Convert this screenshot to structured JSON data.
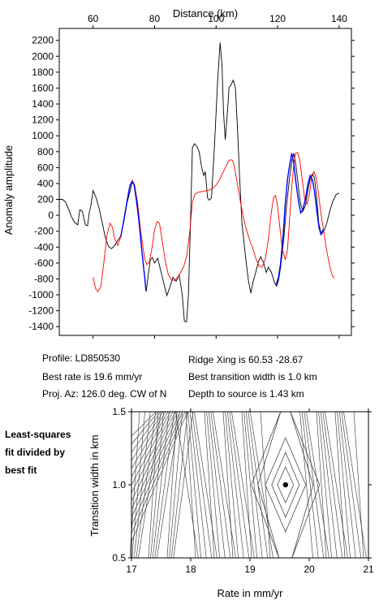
{
  "info": {
    "profile": "Profile: LD850530",
    "best_rate": "Best rate is 19.6 mm/yr",
    "proj_az": "Proj. Az: 126.0 deg. CW of N",
    "ridge_xing": "Ridge Xing is 60.53 -28.67",
    "best_width": "Best transition width is 1.0 km",
    "depth": "Depth to source is   1.43 km"
  },
  "side_note": [
    "Least-squares",
    "fit divided by",
    "best fit"
  ],
  "colors": {
    "observed": "#000000",
    "synthetic": "#ff0000",
    "window_fit": "#0000ff",
    "contour": "#333333",
    "best_fit_marker": "#000000"
  },
  "chart_data": [
    {
      "type": "line",
      "title": "",
      "xlabel": "Distance (km)",
      "ylabel": "Anomaly amplitude",
      "xlim": [
        49,
        144
      ],
      "ylim": [
        -1510,
        2350
      ],
      "xticks": [
        60,
        80,
        100,
        120,
        140
      ],
      "yticks": [
        -1400,
        -1200,
        -1000,
        -800,
        -600,
        -400,
        -200,
        0,
        200,
        400,
        600,
        800,
        1000,
        1200,
        1400,
        1600,
        1800,
        2000,
        2200
      ],
      "x_axis_position": "top",
      "grid": false,
      "series": [
        {
          "key": "observed",
          "points": [
            [
              49,
              200
            ],
            [
              50,
              200
            ],
            [
              51,
              170
            ],
            [
              52,
              80
            ],
            [
              53,
              -20
            ],
            [
              54,
              -90
            ],
            [
              55,
              -120
            ],
            [
              55.7,
              70
            ],
            [
              56.5,
              50
            ],
            [
              57.5,
              -120
            ],
            [
              58.2,
              -130
            ],
            [
              58.8,
              40
            ],
            [
              59.3,
              120
            ],
            [
              60,
              310
            ],
            [
              61,
              220
            ],
            [
              62,
              80
            ],
            [
              63,
              -100
            ],
            [
              64,
              -280
            ],
            [
              65,
              -390
            ],
            [
              66,
              -420
            ],
            [
              67,
              -380
            ],
            [
              68,
              -320
            ],
            [
              69,
              -260
            ],
            [
              70,
              -80
            ],
            [
              71,
              150
            ],
            [
              72,
              300
            ],
            [
              72.7,
              420
            ],
            [
              73.3,
              380
            ],
            [
              74,
              200
            ],
            [
              75,
              -100
            ],
            [
              76,
              -500
            ],
            [
              76.8,
              -780
            ],
            [
              77.3,
              -960
            ],
            [
              77.9,
              -760
            ],
            [
              78.6,
              -560
            ],
            [
              79.3,
              -530
            ],
            [
              80,
              -600
            ],
            [
              81,
              -540
            ],
            [
              82,
              -700
            ],
            [
              83,
              -850
            ],
            [
              84,
              -1010
            ],
            [
              85,
              -900
            ],
            [
              86,
              -780
            ],
            [
              87,
              -830
            ],
            [
              88,
              -750
            ],
            [
              89,
              -1000
            ],
            [
              89.7,
              -1330
            ],
            [
              90.4,
              -1340
            ],
            [
              91,
              -1000
            ],
            [
              91.6,
              -200
            ],
            [
              92.3,
              850
            ],
            [
              93,
              900
            ],
            [
              93.8,
              860
            ],
            [
              94.5,
              800
            ],
            [
              95.3,
              600
            ],
            [
              96,
              500
            ],
            [
              96.5,
              550
            ],
            [
              97.2,
              220
            ],
            [
              97.8,
              190
            ],
            [
              98.5,
              220
            ],
            [
              99.5,
              900
            ],
            [
              100.5,
              1700
            ],
            [
              101.3,
              2170
            ],
            [
              101.9,
              1900
            ],
            [
              102.4,
              1300
            ],
            [
              103,
              950
            ],
            [
              103.6,
              1250
            ],
            [
              104.2,
              1600
            ],
            [
              105,
              1650
            ],
            [
              105.6,
              1700
            ],
            [
              106.3,
              1600
            ],
            [
              107,
              1050
            ],
            [
              107.7,
              450
            ],
            [
              108.4,
              -100
            ],
            [
              109.5,
              -500
            ],
            [
              110.5,
              -820
            ],
            [
              111.3,
              -980
            ],
            [
              112,
              -840
            ],
            [
              113,
              -700
            ],
            [
              113.8,
              -580
            ],
            [
              114.5,
              -520
            ],
            [
              115.5,
              -600
            ],
            [
              116.3,
              -720
            ],
            [
              117,
              -650
            ],
            [
              118,
              -720
            ],
            [
              119,
              -850
            ],
            [
              119.7,
              -890
            ],
            [
              120.3,
              -820
            ],
            [
              121,
              -650
            ],
            [
              122,
              -300
            ],
            [
              123,
              150
            ],
            [
              124,
              500
            ],
            [
              124.7,
              700
            ],
            [
              125.3,
              780
            ],
            [
              126,
              620
            ],
            [
              126.8,
              350
            ],
            [
              127.4,
              160
            ],
            [
              128.2,
              50
            ],
            [
              129,
              120
            ],
            [
              129.8,
              300
            ],
            [
              130.6,
              460
            ],
            [
              131.3,
              520
            ],
            [
              132,
              470
            ],
            [
              132.7,
              220
            ],
            [
              133.4,
              -100
            ],
            [
              134.2,
              -240
            ],
            [
              135,
              -200
            ],
            [
              136,
              -100
            ],
            [
              137,
              60
            ],
            [
              138,
              180
            ],
            [
              139,
              260
            ],
            [
              140,
              280
            ]
          ]
        },
        {
          "key": "synthetic",
          "points": [
            [
              60,
              -780
            ],
            [
              60.8,
              -920
            ],
            [
              61.5,
              -960
            ],
            [
              62.5,
              -900
            ],
            [
              63.5,
              -600
            ],
            [
              64.5,
              -250
            ],
            [
              65.5,
              -100
            ],
            [
              66.3,
              -150
            ],
            [
              67,
              -290
            ],
            [
              68,
              -380
            ],
            [
              69,
              -270
            ],
            [
              70,
              -60
            ],
            [
              71,
              170
            ],
            [
              72,
              380
            ],
            [
              72.8,
              440
            ],
            [
              73.5,
              380
            ],
            [
              74.5,
              150
            ],
            [
              75.5,
              -200
            ],
            [
              76.8,
              -550
            ],
            [
              77.5,
              -620
            ],
            [
              78.3,
              -590
            ],
            [
              79.2,
              -400
            ],
            [
              80,
              -180
            ],
            [
              80.8,
              -80
            ],
            [
              81.6,
              -100
            ],
            [
              82.4,
              -300
            ],
            [
              83.5,
              -580
            ],
            [
              84.5,
              -750
            ],
            [
              85.5,
              -810
            ],
            [
              86.5,
              -820
            ],
            [
              87.5,
              -780
            ],
            [
              88.5,
              -720
            ],
            [
              89.5,
              -640
            ],
            [
              90.5,
              -500
            ],
            [
              91.5,
              -180
            ],
            [
              92.3,
              170
            ],
            [
              93.2,
              270
            ],
            [
              94.2,
              290
            ],
            [
              95.5,
              300
            ],
            [
              96.8,
              310
            ],
            [
              98,
              320
            ],
            [
              99,
              340
            ],
            [
              100,
              380
            ],
            [
              101,
              440
            ],
            [
              102,
              520
            ],
            [
              103,
              600
            ],
            [
              104,
              680
            ],
            [
              104.8,
              700
            ],
            [
              105.4,
              690
            ],
            [
              106,
              600
            ],
            [
              107,
              380
            ],
            [
              108,
              150
            ],
            [
              109,
              -50
            ],
            [
              110,
              -200
            ],
            [
              111,
              -320
            ],
            [
              112,
              -420
            ],
            [
              113,
              -550
            ],
            [
              114,
              -640
            ],
            [
              115,
              -650
            ],
            [
              116,
              -550
            ],
            [
              117,
              -300
            ],
            [
              118,
              50
            ],
            [
              118.7,
              220
            ],
            [
              119.3,
              250
            ],
            [
              119.9,
              150
            ],
            [
              120.6,
              -100
            ],
            [
              121.5,
              -420
            ],
            [
              122.5,
              -560
            ],
            [
              123.2,
              -440
            ],
            [
              123.8,
              -100
            ],
            [
              124.5,
              300
            ],
            [
              125.2,
              620
            ],
            [
              125.9,
              780
            ],
            [
              126.5,
              790
            ],
            [
              127.2,
              700
            ],
            [
              128,
              450
            ],
            [
              128.8,
              200
            ],
            [
              129.6,
              140
            ],
            [
              130.4,
              280
            ],
            [
              131.1,
              480
            ],
            [
              131.8,
              550
            ],
            [
              132.5,
              480
            ],
            [
              133.2,
              300
            ],
            [
              134,
              50
            ],
            [
              135,
              -200
            ],
            [
              136,
              -450
            ],
            [
              137,
              -650
            ],
            [
              137.8,
              -760
            ],
            [
              138.5,
              -790
            ]
          ]
        },
        {
          "key": "window_fit",
          "segments": [
            [
              [
                69,
                -270
              ],
              [
                70,
                -60
              ],
              [
                71,
                170
              ],
              [
                72,
                380
              ],
              [
                72.7,
                420
              ],
              [
                73.4,
                380
              ],
              [
                74.2,
                180
              ],
              [
                75,
                -100
              ],
              [
                76,
                -500
              ],
              [
                76.8,
                -780
              ],
              [
                77.2,
                -950
              ]
            ],
            [
              [
                119.5,
                -870
              ],
              [
                120.3,
                -780
              ],
              [
                121,
                -600
              ],
              [
                121.8,
                -250
              ],
              [
                122.5,
                150
              ],
              [
                123.3,
                480
              ],
              [
                124,
                650
              ],
              [
                124.6,
                780
              ],
              [
                125.3,
                650
              ],
              [
                126,
                400
              ],
              [
                126.8,
                180
              ],
              [
                127.5,
                30
              ],
              [
                128.2,
                70
              ],
              [
                129,
                200
              ],
              [
                129.8,
                380
              ],
              [
                130.6,
                500
              ],
              [
                131.3,
                450
              ],
              [
                132,
                300
              ],
              [
                132.8,
                40
              ],
              [
                133.5,
                -160
              ],
              [
                134.1,
                -240
              ],
              [
                134.8,
                -180
              ]
            ]
          ]
        }
      ]
    },
    {
      "type": "contour",
      "title": "",
      "xlabel": "Rate in mm/yr",
      "ylabel": "Transition width in km",
      "xlim": [
        17,
        21
      ],
      "ylim": [
        0.5,
        1.5
      ],
      "xticks": [
        17,
        18,
        19,
        20,
        21
      ],
      "yticks": [
        0.5,
        1.0,
        1.5
      ],
      "best_fit": {
        "rate": 19.6,
        "width": 1.0
      }
    }
  ]
}
